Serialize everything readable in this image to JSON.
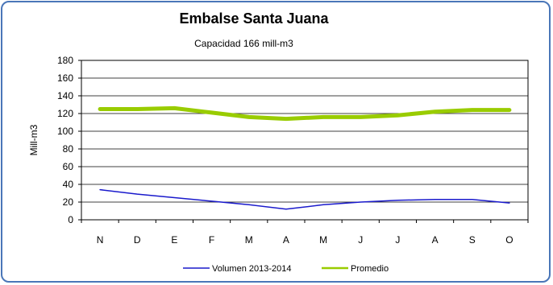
{
  "chart_data": {
    "type": "line",
    "title": "Embalse Santa Juana",
    "subtitle": "Capacidad 166 mill-m3",
    "ylabel": "Mill-m3",
    "xlabel": "",
    "categories": [
      "N",
      "D",
      "E",
      "F",
      "M",
      "A",
      "M",
      "J",
      "J",
      "A",
      "S",
      "O"
    ],
    "ylim": [
      0,
      180
    ],
    "yticks": [
      0,
      20,
      40,
      60,
      80,
      100,
      120,
      140,
      160,
      180
    ],
    "grid": true,
    "legend_position": "bottom",
    "series": [
      {
        "name": "Volumen 2013-2014",
        "color": "#1a1acc",
        "values": [
          34,
          29,
          25,
          21,
          17,
          12,
          17,
          20,
          22,
          23,
          23,
          19
        ]
      },
      {
        "name": "Promedio",
        "color": "#99cc00",
        "values": [
          125,
          125,
          126,
          121,
          116,
          114,
          116,
          116,
          118,
          122,
          124,
          124
        ]
      }
    ]
  }
}
